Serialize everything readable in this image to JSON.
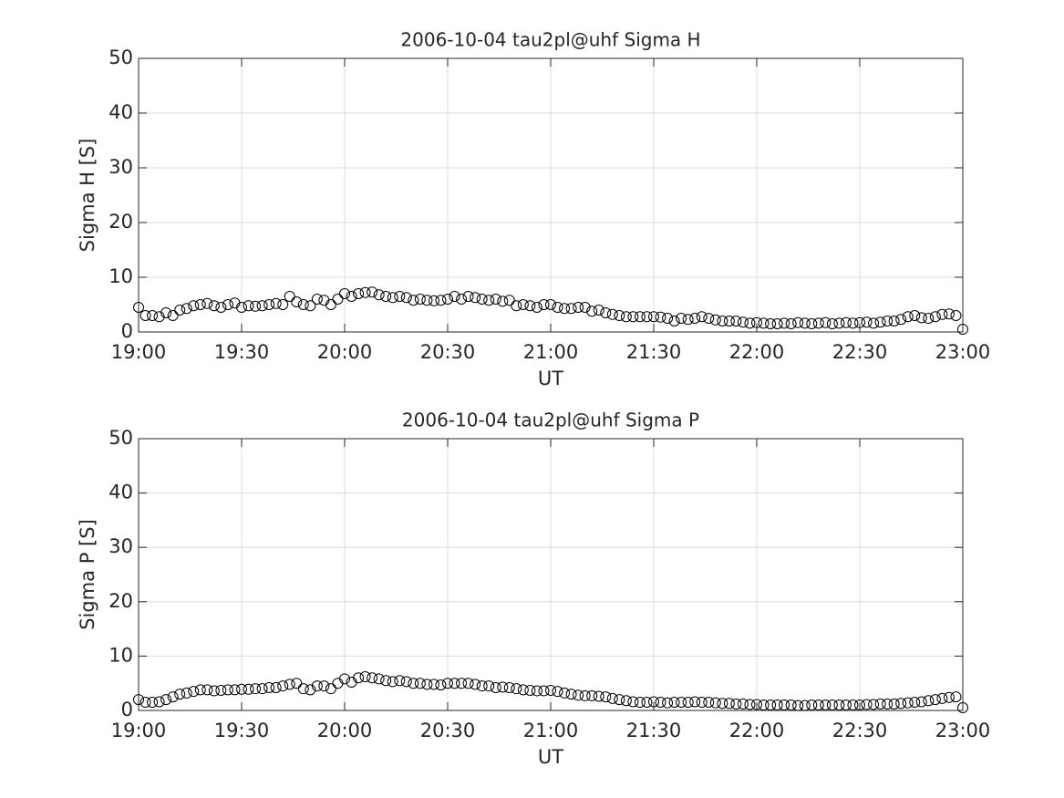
{
  "chart_data": [
    {
      "type": "scatter",
      "title": "2006-10-04  tau2pl@uhf Sigma H",
      "xlabel": "UT",
      "ylabel": "Sigma H [S]",
      "color": "#000000",
      "grid": true,
      "xlim": [
        "19:00",
        "23:00"
      ],
      "xticks": [
        "19:00",
        "19:30",
        "20:00",
        "20:30",
        "21:00",
        "21:30",
        "22:00",
        "22:30",
        "23:00"
      ],
      "ylim": [
        0,
        50
      ],
      "yticks": [
        0,
        10,
        20,
        30,
        40,
        50
      ],
      "x": [
        "19:00",
        "19:02",
        "19:04",
        "19:06",
        "19:08",
        "19:10",
        "19:12",
        "19:14",
        "19:16",
        "19:18",
        "19:20",
        "19:22",
        "19:24",
        "19:26",
        "19:28",
        "19:30",
        "19:32",
        "19:34",
        "19:36",
        "19:38",
        "19:40",
        "19:42",
        "19:44",
        "19:46",
        "19:48",
        "19:50",
        "19:52",
        "19:54",
        "19:56",
        "19:58",
        "20:00",
        "20:02",
        "20:04",
        "20:06",
        "20:08",
        "20:10",
        "20:12",
        "20:14",
        "20:16",
        "20:18",
        "20:20",
        "20:22",
        "20:24",
        "20:26",
        "20:28",
        "20:30",
        "20:32",
        "20:34",
        "20:36",
        "20:38",
        "20:40",
        "20:42",
        "20:44",
        "20:46",
        "20:48",
        "20:50",
        "20:52",
        "20:54",
        "20:56",
        "20:58",
        "21:00",
        "21:02",
        "21:04",
        "21:06",
        "21:08",
        "21:10",
        "21:12",
        "21:14",
        "21:16",
        "21:18",
        "21:20",
        "21:22",
        "21:24",
        "21:26",
        "21:28",
        "21:30",
        "21:32",
        "21:34",
        "21:36",
        "21:38",
        "21:40",
        "21:42",
        "21:44",
        "21:46",
        "21:48",
        "21:50",
        "21:52",
        "21:54",
        "21:56",
        "21:58",
        "22:00",
        "22:02",
        "22:04",
        "22:06",
        "22:08",
        "22:10",
        "22:12",
        "22:14",
        "22:16",
        "22:18",
        "22:20",
        "22:22",
        "22:24",
        "22:26",
        "22:28",
        "22:30",
        "22:32",
        "22:34",
        "22:36",
        "22:38",
        "22:40",
        "22:42",
        "22:44",
        "22:46",
        "22:48",
        "22:50",
        "22:52",
        "22:54",
        "22:56",
        "22:58",
        "23:00"
      ],
      "values": [
        4.5,
        3.0,
        3.0,
        2.8,
        3.5,
        3.0,
        4.0,
        4.3,
        4.8,
        5.0,
        5.2,
        4.8,
        4.5,
        5.0,
        5.3,
        4.5,
        4.8,
        4.7,
        4.8,
        5.0,
        5.2,
        5.0,
        6.5,
        5.5,
        5.0,
        4.8,
        6.0,
        5.8,
        5.0,
        6.0,
        7.0,
        6.5,
        7.0,
        7.2,
        7.3,
        6.8,
        6.5,
        6.3,
        6.5,
        6.3,
        5.8,
        6.0,
        5.8,
        5.7,
        5.8,
        6.0,
        6.5,
        6.0,
        6.5,
        6.3,
        6.0,
        5.8,
        6.0,
        5.6,
        5.8,
        4.8,
        5.0,
        4.8,
        4.5,
        5.0,
        5.0,
        4.5,
        4.3,
        4.3,
        4.5,
        4.5,
        3.8,
        4.0,
        3.5,
        3.2,
        3.0,
        2.8,
        2.8,
        2.8,
        2.8,
        2.8,
        2.7,
        2.5,
        2.0,
        2.5,
        2.3,
        2.5,
        2.8,
        2.5,
        2.2,
        2.0,
        2.0,
        2.0,
        1.8,
        1.6,
        1.7,
        1.6,
        1.5,
        1.5,
        1.6,
        1.5,
        1.7,
        1.6,
        1.5,
        1.6,
        1.7,
        1.5,
        1.6,
        1.7,
        1.6,
        1.7,
        1.8,
        1.6,
        1.8,
        2.0,
        2.0,
        2.3,
        2.8,
        3.0,
        2.6,
        2.5,
        2.8,
        3.2,
        3.3,
        3.0,
        0.5
      ]
    },
    {
      "type": "scatter",
      "title": "2006-10-04  tau2pl@uhf Sigma P",
      "xlabel": "UT",
      "ylabel": "Sigma P [S]",
      "color": "#000000",
      "grid": true,
      "xlim": [
        "19:00",
        "23:00"
      ],
      "xticks": [
        "19:00",
        "19:30",
        "20:00",
        "20:30",
        "21:00",
        "21:30",
        "22:00",
        "22:30",
        "23:00"
      ],
      "ylim": [
        0,
        50
      ],
      "yticks": [
        0,
        10,
        20,
        30,
        40,
        50
      ],
      "x": [
        "19:00",
        "19:02",
        "19:04",
        "19:06",
        "19:08",
        "19:10",
        "19:12",
        "19:14",
        "19:16",
        "19:18",
        "19:20",
        "19:22",
        "19:24",
        "19:26",
        "19:28",
        "19:30",
        "19:32",
        "19:34",
        "19:36",
        "19:38",
        "19:40",
        "19:42",
        "19:44",
        "19:46",
        "19:48",
        "19:50",
        "19:52",
        "19:54",
        "19:56",
        "19:58",
        "20:00",
        "20:02",
        "20:04",
        "20:06",
        "20:08",
        "20:10",
        "20:12",
        "20:14",
        "20:16",
        "20:18",
        "20:20",
        "20:22",
        "20:24",
        "20:26",
        "20:28",
        "20:30",
        "20:32",
        "20:34",
        "20:36",
        "20:38",
        "20:40",
        "20:42",
        "20:44",
        "20:46",
        "20:48",
        "20:50",
        "20:52",
        "20:54",
        "20:56",
        "20:58",
        "21:00",
        "21:02",
        "21:04",
        "21:06",
        "21:08",
        "21:10",
        "21:12",
        "21:14",
        "21:16",
        "21:18",
        "21:20",
        "21:22",
        "21:24",
        "21:26",
        "21:28",
        "21:30",
        "21:32",
        "21:34",
        "21:36",
        "21:38",
        "21:40",
        "21:42",
        "21:44",
        "21:46",
        "21:48",
        "21:50",
        "21:52",
        "21:54",
        "21:56",
        "21:58",
        "22:00",
        "22:02",
        "22:04",
        "22:06",
        "22:08",
        "22:10",
        "22:12",
        "22:14",
        "22:16",
        "22:18",
        "22:20",
        "22:22",
        "22:24",
        "22:26",
        "22:28",
        "22:30",
        "22:32",
        "22:34",
        "22:36",
        "22:38",
        "22:40",
        "22:42",
        "22:44",
        "22:46",
        "22:48",
        "22:50",
        "22:52",
        "22:54",
        "22:56",
        "22:58",
        "23:00"
      ],
      "values": [
        2.0,
        1.5,
        1.5,
        1.6,
        2.0,
        2.5,
        3.0,
        3.2,
        3.5,
        3.8,
        3.8,
        3.6,
        3.7,
        3.8,
        3.8,
        3.9,
        3.9,
        4.0,
        4.0,
        4.2,
        4.2,
        4.5,
        4.8,
        5.0,
        4.0,
        3.8,
        4.5,
        4.5,
        4.0,
        5.0,
        5.8,
        5.2,
        6.0,
        6.2,
        6.0,
        5.8,
        5.5,
        5.3,
        5.5,
        5.3,
        5.0,
        5.0,
        4.8,
        4.8,
        4.7,
        5.0,
        5.0,
        5.0,
        5.0,
        4.8,
        4.5,
        4.5,
        4.2,
        4.3,
        4.2,
        4.0,
        3.8,
        3.7,
        3.6,
        3.6,
        3.7,
        3.5,
        3.2,
        3.0,
        2.8,
        2.7,
        2.7,
        2.6,
        2.5,
        2.2,
        2.0,
        1.8,
        1.6,
        1.5,
        1.5,
        1.6,
        1.5,
        1.4,
        1.5,
        1.5,
        1.5,
        1.6,
        1.5,
        1.5,
        1.4,
        1.3,
        1.3,
        1.2,
        1.2,
        1.1,
        1.1,
        1.0,
        1.0,
        1.0,
        1.0,
        1.0,
        0.9,
        0.9,
        1.0,
        1.0,
        1.0,
        1.0,
        1.0,
        1.0,
        1.0,
        1.0,
        1.1,
        1.1,
        1.2,
        1.2,
        1.2,
        1.3,
        1.4,
        1.5,
        1.6,
        1.8,
        2.0,
        2.2,
        2.4,
        2.5,
        0.5
      ]
    }
  ]
}
